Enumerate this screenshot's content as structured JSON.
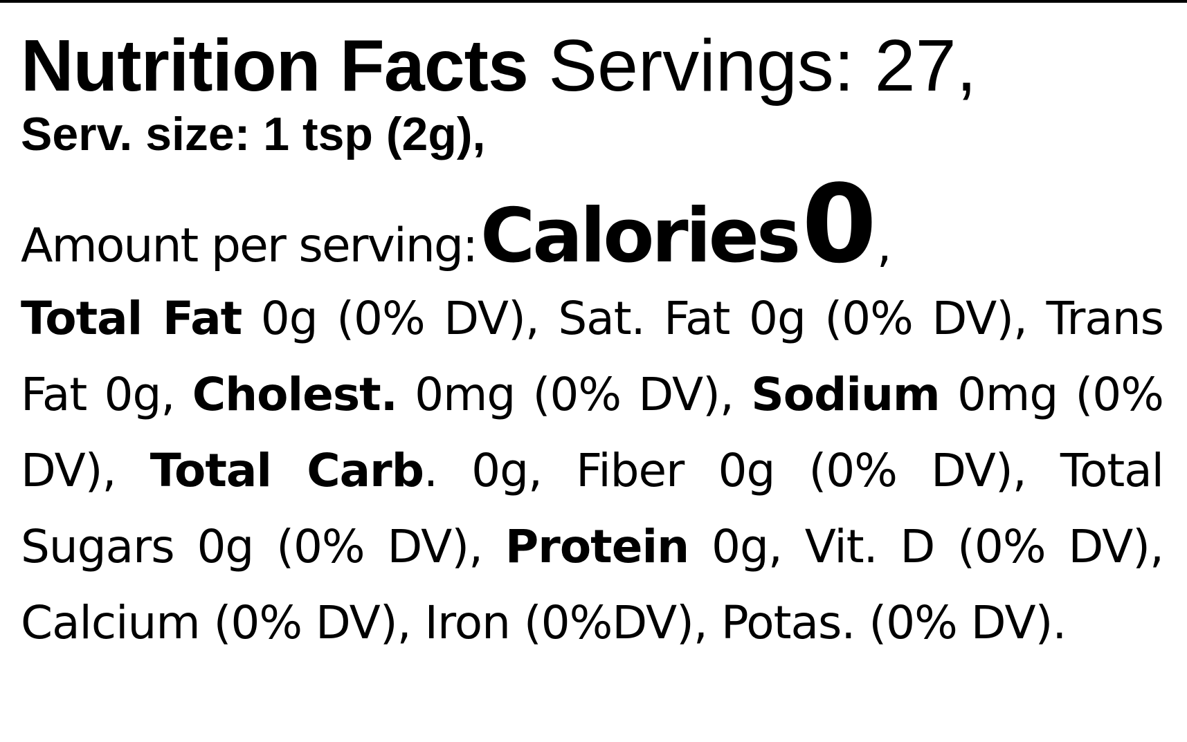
{
  "header": {
    "title": "Nutrition Facts",
    "servings": "Servings: 27,",
    "serving_size": "Serv. size: 1 tsp (2g),"
  },
  "calories": {
    "amount_label": "Amount per serving:",
    "label": "Calories",
    "value": "0",
    "trailer": ","
  },
  "nutrients": {
    "total_fat_label": "Total Fat",
    "total_fat_text": "0g (0% DV), Sat. Fat 0g (0% DV), Trans Fat 0g,",
    "cholesterol_label": "Cholest.",
    "cholesterol_text": "0mg (0% DV),",
    "sodium_label": "Sodium",
    "sodium_text": "0mg (0% DV),",
    "carb_label": "Total Carb",
    "carb_text": ". 0g, Fiber 0g (0% DV), Total Sugars 0g (0% DV),",
    "protein_label": "Protein",
    "protein_text": "0g, Vit. D (0% DV), Calcium (0% DV), Iron (0%DV), Potas. (0% DV)."
  }
}
